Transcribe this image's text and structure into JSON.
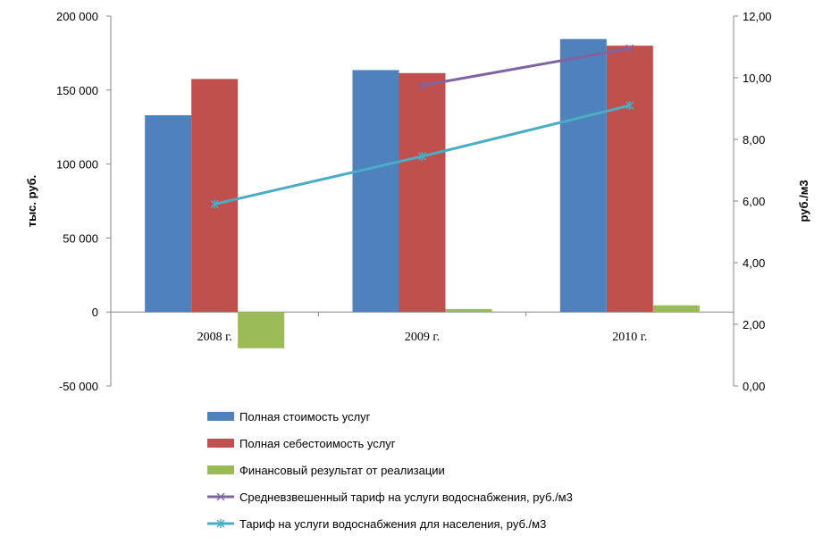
{
  "chart_data": {
    "type": "bar",
    "categories": [
      "2008 г.",
      "2009 г.",
      "2010 г."
    ],
    "y_left": {
      "label": "тыс. руб.",
      "lim": [
        -50000,
        200000
      ],
      "ticks": [
        200000,
        150000,
        100000,
        50000,
        0,
        -50000
      ],
      "tick_labels": [
        "200 000",
        "150 000",
        "100 000",
        "50 000",
        "0",
        "-50 000"
      ]
    },
    "y_right": {
      "label": "руб./м3",
      "lim": [
        0,
        12
      ],
      "ticks": [
        12,
        10,
        8,
        6,
        4,
        2,
        0
      ],
      "tick_labels": [
        "12,00",
        "10,00",
        "8,00",
        "6,00",
        "4,00",
        "2,00",
        "0,00"
      ]
    },
    "grid": false,
    "legend_position": "bottom",
    "series": [
      {
        "name": "Полная стоимость услуг",
        "kind": "bar",
        "axis": "left",
        "color": "#4f81bd",
        "values": [
          133000,
          163500,
          184500
        ]
      },
      {
        "name": "Полная себестоимость услуг",
        "kind": "bar",
        "axis": "left",
        "color": "#c0504d",
        "values": [
          157500,
          161500,
          180000
        ]
      },
      {
        "name": "Финансовый результат от реализации",
        "kind": "bar",
        "axis": "left",
        "color": "#9bbb59",
        "values": [
          -24500,
          2000,
          4500
        ]
      },
      {
        "name": "Средневзвешенный тариф на услуги водоснабжения, руб./м3",
        "kind": "line",
        "axis": "right",
        "color": "#8064a2",
        "marker": "x",
        "values": [
          null,
          9.75,
          10.95
        ]
      },
      {
        "name": "Тариф на услуги водоснабжения для населения, руб./м3",
        "kind": "line",
        "axis": "right",
        "color": "#4bacc6",
        "marker": "star",
        "values": [
          5.9,
          7.45,
          9.1
        ]
      }
    ]
  }
}
